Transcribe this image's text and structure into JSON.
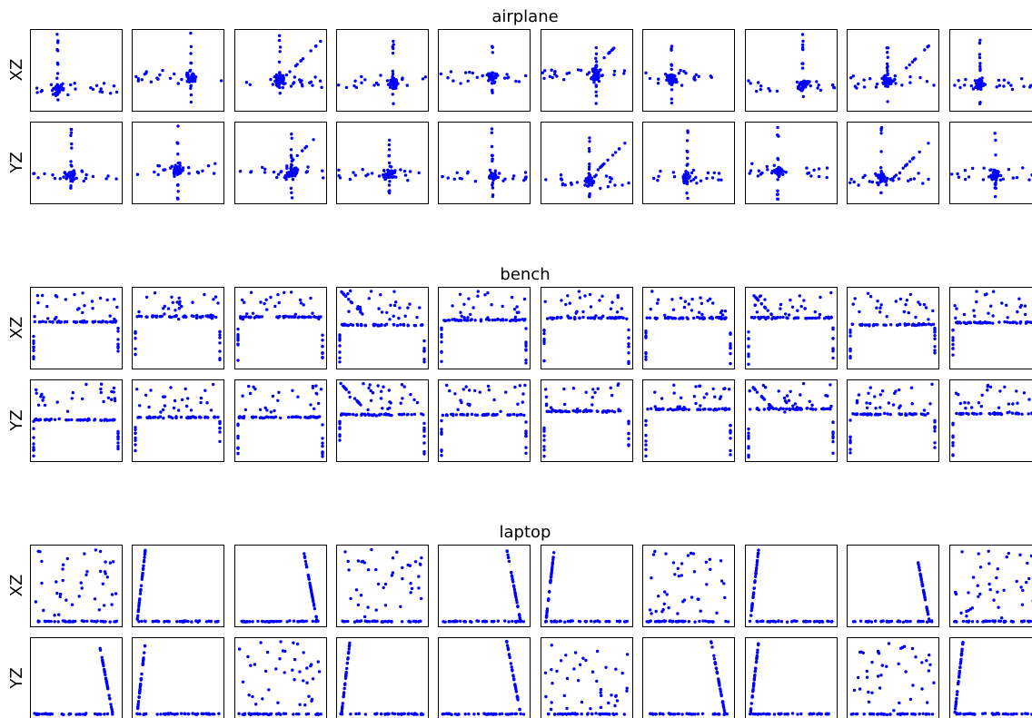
{
  "figure": {
    "groups": [
      {
        "title": "airplane",
        "row_labels": [
          "XZ",
          "YZ"
        ]
      },
      {
        "title": "bench",
        "row_labels": [
          "XZ",
          "YZ"
        ]
      },
      {
        "title": "laptop",
        "row_labels": [
          "XZ",
          "YZ"
        ]
      }
    ],
    "colors": {
      "point": "#0000ff",
      "frame": "#000000"
    }
  },
  "chart_data": [
    {
      "type": "scatter",
      "title": "airplane",
      "rows": [
        "XZ",
        "YZ"
      ],
      "columns_visible": 10,
      "pattern": "airplane"
    },
    {
      "type": "scatter",
      "title": "bench",
      "rows": [
        "XZ",
        "YZ"
      ],
      "columns_visible": 10,
      "pattern": "bench"
    },
    {
      "type": "scatter",
      "title": "laptop",
      "rows": [
        "XZ",
        "YZ"
      ],
      "columns_visible": 10,
      "pattern": "laptop"
    }
  ]
}
